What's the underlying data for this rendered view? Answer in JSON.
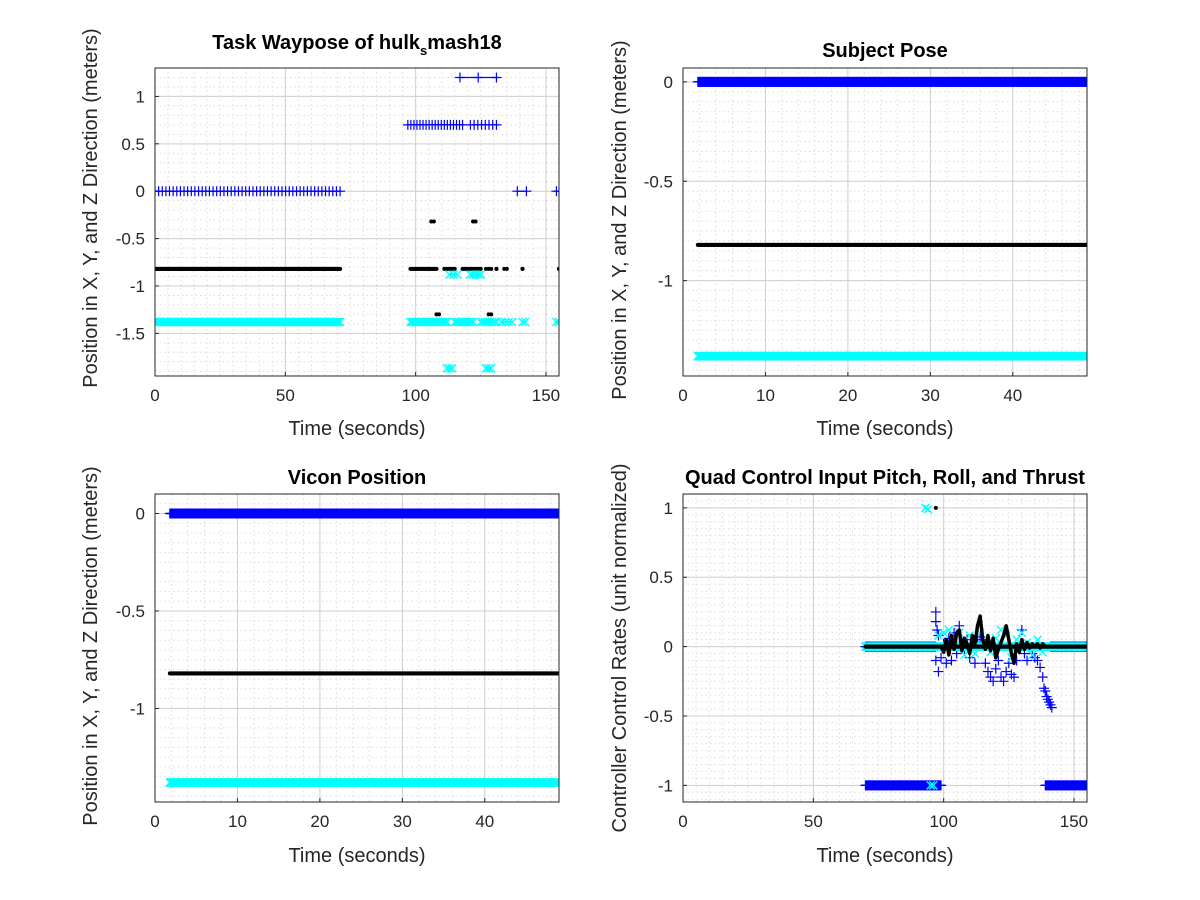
{
  "colors": {
    "x": "#0000ff",
    "y": "#000000",
    "z": "#00ffff",
    "axis": "#262626",
    "grid": "#cfcfcf"
  },
  "chart_data": [
    {
      "id": "waypose",
      "type": "scatter",
      "title_main": "Task Waypose of hulk",
      "title_sub": "s",
      "title_tail": "mash18",
      "xlabel": "Time (seconds)",
      "ylabel": "Position in X, Y, and Z Direction (meters)",
      "xlim": [
        0,
        155
      ],
      "ylim": [
        -1.95,
        1.3
      ],
      "xticks": [
        0,
        50,
        100,
        150
      ],
      "xtick_labels": [
        "0",
        "50",
        "100",
        "150"
      ],
      "yticks": [
        1,
        0.5,
        0,
        -0.5,
        -1,
        -1.5
      ],
      "ytick_labels": [
        "1",
        "0.5",
        "0",
        "-0.5",
        "-1",
        "-1.5"
      ],
      "grid": true,
      "minor_grid": true,
      "series": [
        {
          "marker": "plus",
          "color_key": "x",
          "segments": [
            {
              "x0": 0,
              "x1": 71,
              "y": 0,
              "step": 1.4
            },
            {
              "x0": 97,
              "x1": 118,
              "y": 0.7,
              "step": 1.2
            },
            {
              "x0": 121,
              "x1": 131,
              "y": 0.7,
              "step": 1.5
            },
            {
              "x0": 117,
              "x1": 131,
              "y": 1.2,
              "step": 7
            },
            {
              "x0": 139,
              "x1": 142.5,
              "y": 0,
              "step": 3.5
            },
            {
              "x0": 154,
              "x1": 155,
              "y": 0,
              "step": 1
            }
          ]
        },
        {
          "marker": "dot",
          "color_key": "y",
          "segments": [
            {
              "x0": 0,
              "x1": 71,
              "y": -0.82,
              "step": 0.25
            },
            {
              "x0": 98,
              "x1": 108,
              "y": -0.82,
              "step": 0.4
            },
            {
              "x0": 111,
              "x1": 115,
              "y": -0.82,
              "step": 0.5
            },
            {
              "x0": 118,
              "x1": 125,
              "y": -0.82,
              "step": 0.5
            },
            {
              "x0": 127,
              "x1": 129,
              "y": -0.82,
              "step": 1
            },
            {
              "x0": 131,
              "x1": 131,
              "y": -0.82,
              "step": 1
            },
            {
              "x0": 134,
              "x1": 135,
              "y": -0.82,
              "step": 1
            },
            {
              "x0": 141,
              "x1": 141,
              "y": -0.82,
              "step": 1
            },
            {
              "x0": 155,
              "x1": 155,
              "y": -0.82,
              "step": 1
            },
            {
              "x0": 106,
              "x1": 107,
              "y": -0.32,
              "step": 1
            },
            {
              "x0": 122,
              "x1": 123,
              "y": -0.32,
              "step": 1
            },
            {
              "x0": 108,
              "x1": 109,
              "y": -1.3,
              "step": 1
            },
            {
              "x0": 128,
              "x1": 129,
              "y": -1.3,
              "step": 1
            }
          ]
        },
        {
          "marker": "cross",
          "color_key": "z",
          "segments": [
            {
              "x0": 0,
              "x1": 71,
              "y": -1.38,
              "step": 0.6
            },
            {
              "x0": 98,
              "x1": 112,
              "y": -1.38,
              "step": 0.7
            },
            {
              "x0": 115,
              "x1": 122,
              "y": -1.38,
              "step": 0.8
            },
            {
              "x0": 125,
              "x1": 131,
              "y": -1.38,
              "step": 0.9
            },
            {
              "x0": 133,
              "x1": 137,
              "y": -1.38,
              "step": 1.3
            },
            {
              "x0": 141,
              "x1": 142,
              "y": -1.38,
              "step": 1
            },
            {
              "x0": 154,
              "x1": 155,
              "y": -1.38,
              "step": 1
            },
            {
              "x0": 113,
              "x1": 116,
              "y": -0.88,
              "step": 1.5
            },
            {
              "x0": 121,
              "x1": 125,
              "y": -0.88,
              "step": 1
            },
            {
              "x0": 112,
              "x1": 114,
              "y": -1.87,
              "step": 1
            },
            {
              "x0": 127,
              "x1": 129,
              "y": -1.87,
              "step": 1
            }
          ]
        }
      ]
    },
    {
      "id": "subject",
      "type": "scatter",
      "title_main": "Subject Pose",
      "xlabel": "Time (seconds)",
      "ylabel": "Position in X, Y, and Z Direction (meters)",
      "xlim": [
        0,
        49
      ],
      "ylim": [
        -1.48,
        0.07
      ],
      "xticks": [
        0,
        10,
        20,
        30,
        40
      ],
      "xtick_labels": [
        "0",
        "10",
        "20",
        "30",
        "40"
      ],
      "yticks": [
        0,
        -0.5,
        -1
      ],
      "ytick_labels": [
        "0",
        "-0.5",
        "-1"
      ],
      "grid": true,
      "minor_grid": true,
      "series": [
        {
          "marker": "plus",
          "color_key": "x",
          "segments": [
            {
              "x0": 1.8,
              "x1": 49,
              "y": 0,
              "step": 0.08
            }
          ]
        },
        {
          "marker": "dot",
          "color_key": "y",
          "segments": [
            {
              "x0": 1.8,
              "x1": 49,
              "y": -0.82,
              "step": 0.08
            }
          ]
        },
        {
          "marker": "cross",
          "color_key": "z",
          "segments": [
            {
              "x0": 1.8,
              "x1": 49,
              "y": -1.38,
              "step": 0.08
            }
          ]
        }
      ]
    },
    {
      "id": "vicon",
      "type": "scatter",
      "title_main": "Vicon Position",
      "xlabel": "Time (seconds)",
      "ylabel": "Position in X, Y, and Z Direction (meters)",
      "xlim": [
        0,
        49
      ],
      "ylim": [
        -1.48,
        0.1
      ],
      "xticks": [
        0,
        10,
        20,
        30,
        40
      ],
      "xtick_labels": [
        "0",
        "10",
        "20",
        "30",
        "40"
      ],
      "yticks": [
        0,
        -0.5,
        -1
      ],
      "ytick_labels": [
        "0",
        "-0.5",
        "-1"
      ],
      "grid": true,
      "minor_grid": true,
      "series": [
        {
          "marker": "plus",
          "color_key": "x",
          "segments": [
            {
              "x0": 1.8,
              "x1": 49,
              "y": 0,
              "step": 0.08
            }
          ]
        },
        {
          "marker": "dot",
          "color_key": "y",
          "segments": [
            {
              "x0": 1.8,
              "x1": 49,
              "y": -0.82,
              "step": 0.08
            }
          ]
        },
        {
          "marker": "cross",
          "color_key": "z",
          "segments": [
            {
              "x0": 1.8,
              "x1": 49,
              "y": -1.38,
              "step": 0.08
            }
          ]
        }
      ]
    },
    {
      "id": "control",
      "type": "scatter",
      "title_main": "Quad Control Input Pitch, Roll, and Thrust",
      "xlabel": "Time (seconds)",
      "ylabel": "Controller Control Rates (unit normalized)",
      "xlim": [
        0,
        155
      ],
      "ylim": [
        -1.12,
        1.1
      ],
      "xticks": [
        0,
        50,
        100,
        150
      ],
      "xtick_labels": [
        "0",
        "50",
        "100",
        "150"
      ],
      "yticks": [
        1,
        0.5,
        0,
        -0.5,
        -1
      ],
      "ytick_labels": [
        "1",
        "0.5",
        "0",
        "-0.5",
        "-1"
      ],
      "grid": true,
      "minor_grid": true,
      "series": [
        {
          "marker": "plus",
          "color_key": "x",
          "segments": [
            {
              "x0": 70,
              "x1": 99,
              "y": -1,
              "step": 0.25
            },
            {
              "x0": 139,
              "x1": 155,
              "y": -1,
              "step": 0.25
            },
            {
              "x0": 70,
              "x1": 97,
              "y": 0,
              "step": 0.3
            },
            {
              "x0": 141,
              "x1": 155,
              "y": 0,
              "step": 0.3
            }
          ],
          "points": [
            [
              97,
              0.25
            ],
            [
              97,
              0.18
            ],
            [
              97.5,
              0.12
            ],
            [
              98,
              0.08
            ],
            [
              97,
              -0.1
            ],
            [
              98,
              -0.18
            ],
            [
              99,
              -0.08
            ],
            [
              100,
              0.02
            ],
            [
              101,
              -0.12
            ],
            [
              102,
              0.06
            ],
            [
              103,
              -0.1
            ],
            [
              104,
              0.1
            ],
            [
              105,
              -0.05
            ],
            [
              106,
              0.15
            ],
            [
              107,
              0.03
            ],
            [
              108,
              -0.02
            ],
            [
              109,
              0.05
            ],
            [
              110,
              -0.08
            ],
            [
              111,
              0.02
            ],
            [
              112,
              -0.12
            ],
            [
              113,
              0.03
            ],
            [
              114,
              0.07
            ],
            [
              115,
              0.05
            ],
            [
              116,
              -0.12
            ],
            [
              117,
              -0.18
            ],
            [
              118,
              -0.22
            ],
            [
              119,
              -0.25
            ],
            [
              120,
              -0.16
            ],
            [
              121,
              -0.1
            ],
            [
              122,
              -0.22
            ],
            [
              123,
              -0.25
            ],
            [
              124,
              -0.18
            ],
            [
              125,
              -0.12
            ],
            [
              126,
              -0.2
            ],
            [
              127,
              -0.22
            ],
            [
              128,
              -0.1
            ],
            [
              129,
              -0.02
            ],
            [
              130,
              0.12
            ],
            [
              131,
              -0.05
            ],
            [
              132,
              -0.1
            ],
            [
              133,
              -0.02
            ],
            [
              134,
              -0.05
            ],
            [
              135,
              -0.08
            ],
            [
              136,
              -0.1
            ],
            [
              137,
              -0.15
            ],
            [
              138,
              -0.22
            ],
            [
              138.5,
              -0.3
            ],
            [
              139,
              -0.32
            ],
            [
              139.5,
              -0.36
            ],
            [
              140,
              -0.38
            ],
            [
              140.5,
              -0.4
            ],
            [
              141,
              -0.42
            ],
            [
              141.5,
              -0.44
            ]
          ]
        },
        {
          "marker": "cross",
          "color_key": "z",
          "segments": [
            {
              "x0": 70,
              "x1": 155,
              "y": 0,
              "step": 0.3
            }
          ],
          "points": [
            [
              93,
              1.0
            ],
            [
              94,
              0.99
            ],
            [
              95,
              -1.0
            ],
            [
              96,
              -1.0
            ],
            [
              98,
              0.08
            ],
            [
              100,
              0.1
            ],
            [
              102,
              0.12
            ],
            [
              104,
              0.06
            ],
            [
              106,
              0.1
            ],
            [
              108,
              -0.06
            ],
            [
              110,
              0.08
            ],
            [
              112,
              -0.05
            ],
            [
              114,
              0.1
            ],
            [
              116,
              0.04
            ],
            [
              118,
              -0.04
            ],
            [
              120,
              0.06
            ],
            [
              122,
              0.12
            ],
            [
              124,
              0.08
            ],
            [
              126,
              -0.08
            ],
            [
              128,
              0.05
            ],
            [
              130,
              0.1
            ],
            [
              132,
              0.03
            ],
            [
              134,
              -0.06
            ],
            [
              136,
              0.05
            ],
            [
              138,
              -0.04
            ]
          ]
        },
        {
          "marker": "dot",
          "color_key": "y",
          "segments": [
            {
              "x0": 70,
              "x1": 155,
              "y": 0,
              "step": 0.15
            }
          ],
          "points": [
            [
              97,
              1.0
            ]
          ],
          "line": [
            [
              99,
              0
            ],
            [
              100,
              -0.04
            ],
            [
              101,
              0.05
            ],
            [
              102,
              -0.06
            ],
            [
              103,
              0.08
            ],
            [
              104,
              -0.02
            ],
            [
              105,
              0.1
            ],
            [
              106,
              0.12
            ],
            [
              107,
              -0.03
            ],
            [
              108,
              0.06
            ],
            [
              109,
              0.02
            ],
            [
              110,
              -0.05
            ],
            [
              111,
              0.08
            ],
            [
              112,
              0.02
            ],
            [
              113,
              0.15
            ],
            [
              114,
              0.22
            ],
            [
              115,
              0.05
            ],
            [
              116,
              -0.02
            ],
            [
              117,
              0.08
            ],
            [
              118,
              -0.03
            ],
            [
              119,
              0.06
            ],
            [
              120,
              -0.08
            ],
            [
              121,
              -0.02
            ],
            [
              122,
              0.03
            ],
            [
              123,
              0.08
            ],
            [
              124,
              0.15
            ],
            [
              125,
              0.05
            ],
            [
              126,
              -0.05
            ],
            [
              127,
              -0.12
            ],
            [
              128,
              0.02
            ],
            [
              129,
              -0.04
            ],
            [
              130,
              0.05
            ],
            [
              131,
              -0.02
            ],
            [
              132,
              0.03
            ],
            [
              133,
              -0.01
            ],
            [
              134,
              0.02
            ],
            [
              135,
              0.0
            ],
            [
              136,
              0.02
            ],
            [
              137,
              -0.01
            ],
            [
              138,
              0.02
            ],
            [
              139,
              0.0
            ],
            [
              140,
              0.0
            ]
          ]
        }
      ]
    }
  ]
}
